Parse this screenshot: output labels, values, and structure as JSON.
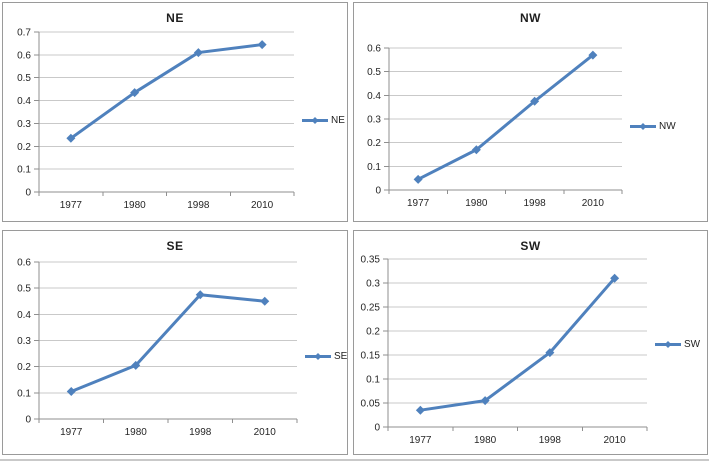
{
  "document": {
    "background": "#ffffff",
    "figure_type": "2x2 grid of line charts"
  },
  "colors": {
    "series_line": "#4f81bd",
    "gridline": "#c9c9c9",
    "axis": "#8f8f8f",
    "panel_border": "#9a9a9a",
    "text": "#1f1f1f",
    "tick_text": "#262626",
    "bottom_rule": "#c9c9c9"
  },
  "chart_data": [
    {
      "type": "line",
      "title": "NE",
      "legend": "NE",
      "legend_position": "right-middle",
      "marker": "diamond",
      "grid": true,
      "categories": [
        "1977",
        "1980",
        "1998",
        "2010"
      ],
      "values": [
        0.235,
        0.435,
        0.61,
        0.645
      ],
      "ylim": [
        0,
        0.7
      ],
      "ytick_step": 0.1
    },
    {
      "type": "line",
      "title": "NW",
      "legend": "NW",
      "legend_position": "right-middle",
      "marker": "diamond",
      "grid": true,
      "categories": [
        "1977",
        "1980",
        "1998",
        "2010"
      ],
      "values": [
        0.045,
        0.17,
        0.375,
        0.57
      ],
      "ylim": [
        0,
        0.6
      ],
      "ytick_step": 0.1
    },
    {
      "type": "line",
      "title": "SE",
      "legend": "SE",
      "legend_position": "right-middle",
      "marker": "diamond",
      "grid": true,
      "categories": [
        "1977",
        "1980",
        "1998",
        "2010"
      ],
      "values": [
        0.105,
        0.205,
        0.475,
        0.45
      ],
      "ylim": [
        0,
        0.6
      ],
      "ytick_step": 0.1
    },
    {
      "type": "line",
      "title": "SW",
      "legend": "SW",
      "legend_position": "right-middle",
      "marker": "diamond",
      "grid": true,
      "categories": [
        "1977",
        "1980",
        "1998",
        "2010"
      ],
      "values": [
        0.035,
        0.055,
        0.155,
        0.31
      ],
      "ylim": [
        0,
        0.35
      ],
      "ytick_step": 0.05
    }
  ]
}
